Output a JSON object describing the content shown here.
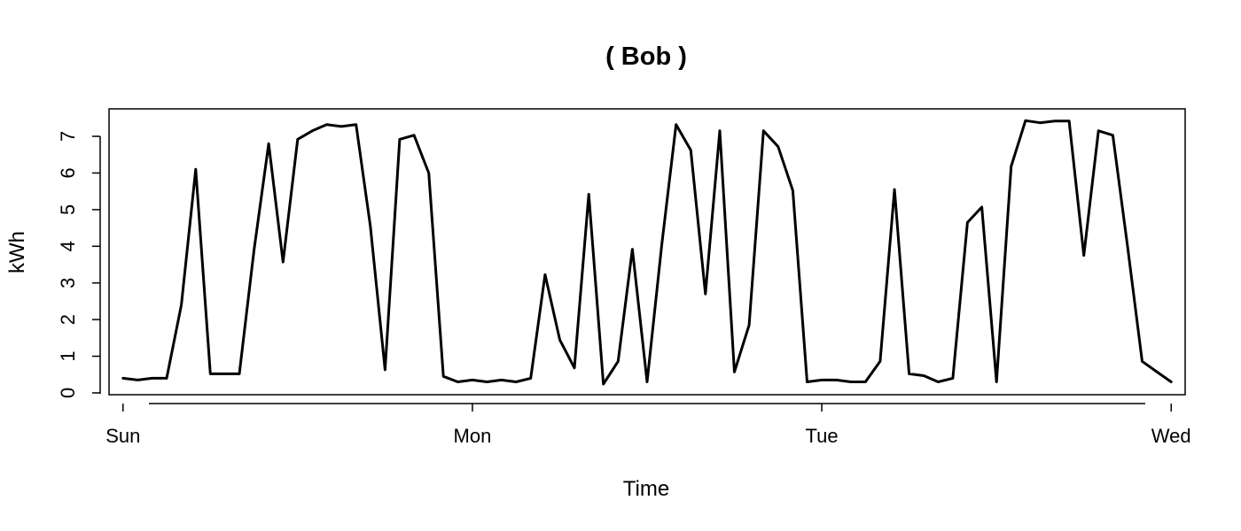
{
  "chart_data": {
    "type": "line",
    "title": "( Bob )",
    "xlabel": "Time",
    "ylabel": "kWh",
    "x_tick_labels": [
      "Sun",
      "Mon",
      "Tue",
      "Wed"
    ],
    "y_ticks": [
      0,
      1,
      2,
      3,
      4,
      5,
      6,
      7
    ],
    "xlim": [
      -0.04,
      3.04
    ],
    "ylim": [
      -0.05,
      7.75
    ],
    "grid": false,
    "line_color": "#000000",
    "series": [
      {
        "x": [
          0,
          0.042,
          0.083,
          0.125,
          0.167,
          0.208,
          0.25,
          0.292,
          0.333,
          0.375,
          0.417,
          0.458,
          0.5,
          0.542,
          0.583,
          0.625,
          0.667,
          0.708,
          0.75,
          0.792,
          0.833,
          0.875,
          0.917,
          0.958,
          1,
          1.042,
          1.083,
          1.125,
          1.167,
          1.208,
          1.25,
          1.292,
          1.333,
          1.375,
          1.417,
          1.458,
          1.5,
          1.542,
          1.583,
          1.625,
          1.667,
          1.708,
          1.75,
          1.792,
          1.833,
          1.875,
          1.917,
          1.958,
          2,
          2.042,
          2.083,
          2.125,
          2.167,
          2.208,
          2.25,
          2.292,
          2.333,
          2.375,
          2.417,
          2.458,
          2.5,
          2.542,
          2.583,
          2.625,
          2.667,
          2.708,
          2.75,
          2.792,
          2.833,
          2.875,
          2.917,
          2.958,
          3
        ],
        "values": [
          0.4,
          0.35,
          0.4,
          0.4,
          2.4,
          6.1,
          0.52,
          0.52,
          0.52,
          3.9,
          6.8,
          3.57,
          6.92,
          7.15,
          7.32,
          7.27,
          7.32,
          4.55,
          0.63,
          6.92,
          7.03,
          6.0,
          0.45,
          0.3,
          0.35,
          0.3,
          0.35,
          0.3,
          0.4,
          3.23,
          1.45,
          0.68,
          5.42,
          0.24,
          0.86,
          3.92,
          0.3,
          4.05,
          7.32,
          6.62,
          2.7,
          7.15,
          0.57,
          1.85,
          7.15,
          6.72,
          5.52,
          0.3,
          0.35,
          0.35,
          0.3,
          0.3,
          0.86,
          5.55,
          0.52,
          0.47,
          0.3,
          0.4,
          4.65,
          5.07,
          0.3,
          6.18,
          7.43,
          7.37,
          7.42,
          7.42,
          3.75,
          7.15,
          7.03,
          4.0,
          0.86,
          0.58,
          0.3
        ]
      }
    ]
  }
}
